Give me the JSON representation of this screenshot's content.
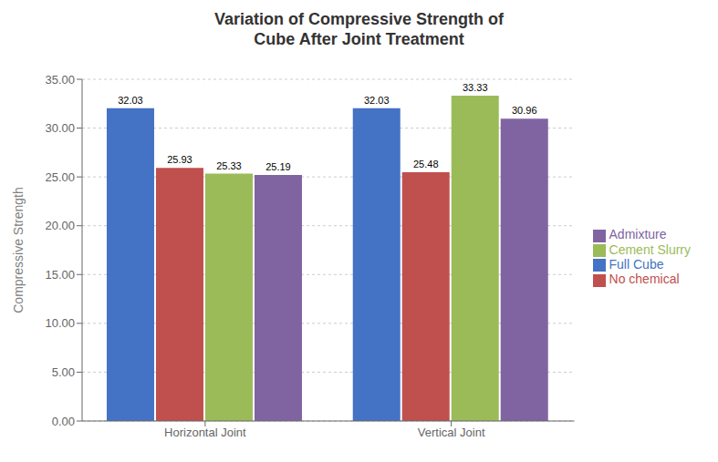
{
  "chart_data": {
    "type": "bar",
    "title": "Variation of Compressive Strength of\nCube After Joint Treatment",
    "ylabel": "Compressive Strength",
    "categories": [
      "Horizontal Joint",
      "Vertical Joint"
    ],
    "series": [
      {
        "name": "Full Cube",
        "color": "#4472C4",
        "values": [
          32.03,
          32.03
        ]
      },
      {
        "name": "No chemical",
        "color": "#C0504D",
        "values": [
          25.93,
          25.48
        ]
      },
      {
        "name": "Cement Slurry",
        "color": "#9BBB59",
        "values": [
          25.33,
          33.33
        ]
      },
      {
        "name": "Admixture",
        "color": "#8064A2",
        "values": [
          25.19,
          30.96
        ]
      }
    ],
    "ylim": [
      0,
      35
    ],
    "yticks": [
      {
        "value": 0,
        "label": "0.00"
      },
      {
        "value": 5,
        "label": "5.00"
      },
      {
        "value": 10,
        "label": "10.00"
      },
      {
        "value": 15,
        "label": "15.00"
      },
      {
        "value": 20,
        "label": "20.00"
      },
      {
        "value": 25,
        "label": "25.00"
      },
      {
        "value": 30,
        "label": "30.00"
      },
      {
        "value": 35,
        "label": "35.00"
      }
    ],
    "grid": true,
    "legend": "right",
    "data_labels": true
  }
}
